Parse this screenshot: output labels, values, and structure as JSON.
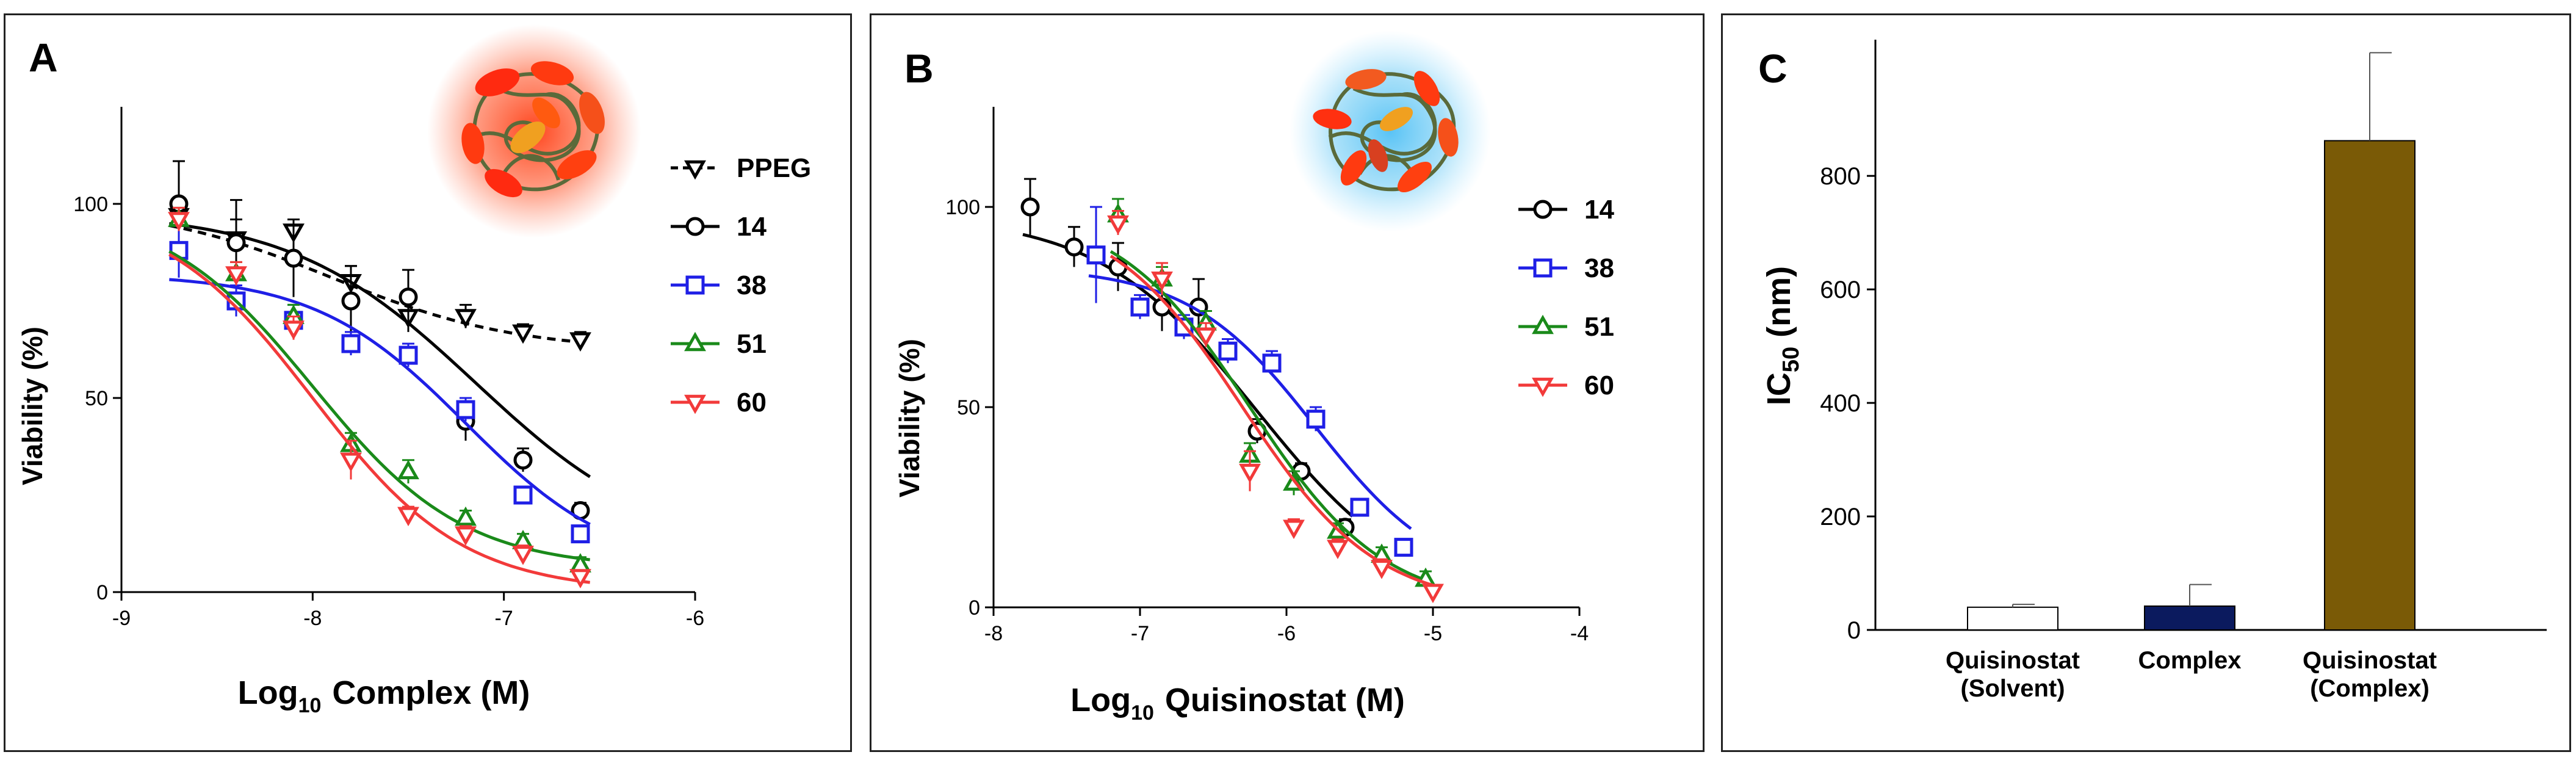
{
  "colors": {
    "PPEG": "#000000",
    "14": "#000000",
    "38": "#1f1fe6",
    "51": "#1a8a1a",
    "60": "#f23a3a",
    "bar_solvent": "#ffffff",
    "bar_complex": "#0b1a5e",
    "bar_quisinostat_complex": "#7a5a06",
    "nanoparticle_glow_A": "#ff4020",
    "nanoparticle_glow_B": "#4ab8f0"
  },
  "chart_data": [
    {
      "panel": "A",
      "type": "scatter",
      "title": "",
      "xlabel_main": "Log",
      "xlabel_sub": "10",
      "xlabel_rest": "Complex (M)",
      "ylabel": "Viability (%)",
      "xlim": [
        -9,
        -6
      ],
      "ylim": [
        0,
        125
      ],
      "xticks": [
        "-9",
        "-8",
        "-7",
        "-6"
      ],
      "xtick_values": [
        -9,
        -8,
        -7,
        -6
      ],
      "yticks": [
        "0",
        "50",
        "100"
      ],
      "ytick_values": [
        0,
        50,
        100
      ],
      "series": [
        {
          "name": "PPEG",
          "key": "PPEG",
          "marker": "triangle-down",
          "dashed": true,
          "x": [
            -8.7,
            -8.4,
            -8.1,
            -7.8,
            -7.5,
            -7.2,
            -6.9,
            -6.6
          ],
          "y": [
            97,
            91,
            93,
            80,
            71,
            71,
            67,
            65
          ],
          "err": [
            4,
            5,
            3,
            4,
            4,
            3,
            2,
            2
          ],
          "fit": {
            "bottom": 62,
            "top": 100,
            "logec50": -7.9,
            "hill": 0.9
          }
        },
        {
          "name": "14",
          "key": "14",
          "marker": "circle",
          "dashed": false,
          "x": [
            -8.7,
            -8.4,
            -8.1,
            -7.8,
            -7.5,
            -7.2,
            -6.9,
            -6.6
          ],
          "y": [
            100,
            90,
            86,
            75,
            76,
            44,
            34,
            21
          ],
          "err": [
            11,
            11,
            10,
            9,
            7,
            5,
            3,
            2
          ],
          "fit": {
            "bottom": 10,
            "top": 98,
            "logec50": -7.15,
            "hill": 0.9
          }
        },
        {
          "name": "38",
          "key": "38",
          "marker": "square",
          "dashed": false,
          "x": [
            -8.7,
            -8.4,
            -8.1,
            -7.8,
            -7.5,
            -7.2,
            -6.9,
            -6.6
          ],
          "y": [
            88,
            75,
            70,
            64,
            61,
            47,
            25,
            15
          ],
          "err": [
            7,
            4,
            4,
            3,
            3,
            3,
            2,
            2
          ],
          "fit": {
            "bottom": 5,
            "top": 82,
            "logec50": -7.2,
            "hill": 1.1
          }
        },
        {
          "name": "51",
          "key": "51",
          "marker": "triangle-up",
          "dashed": false,
          "x": [
            -8.7,
            -8.4,
            -8.1,
            -7.8,
            -7.5,
            -7.2,
            -6.9,
            -6.6
          ],
          "y": [
            96,
            82,
            71,
            38,
            31,
            19,
            13,
            7
          ],
          "err": [
            3,
            3,
            3,
            3,
            3,
            2,
            2,
            2
          ],
          "fit": {
            "bottom": 6,
            "top": 100,
            "logec50": -8.0,
            "hill": 1.1
          }
        },
        {
          "name": "60",
          "key": "60",
          "marker": "triangle-down",
          "dashed": false,
          "x": [
            -8.7,
            -8.4,
            -8.1,
            -7.8,
            -7.5,
            -7.2,
            -6.9,
            -6.6
          ],
          "y": [
            96,
            82,
            68,
            34,
            20,
            15,
            10,
            4
          ],
          "err": [
            3,
            3,
            3,
            5,
            2,
            2,
            2,
            1
          ],
          "fit": {
            "bottom": 0,
            "top": 100,
            "logec50": -8.0,
            "hill": 1.1
          }
        }
      ]
    },
    {
      "panel": "B",
      "type": "scatter",
      "title": "",
      "xlabel_main": "Log",
      "xlabel_sub": "10",
      "xlabel_rest": "Quisinostat (M)",
      "ylabel": "Viability (%)",
      "xlim": [
        -8,
        -4
      ],
      "ylim": [
        0,
        125
      ],
      "xticks": [
        "-8",
        "-7",
        "-6",
        "-5",
        "-4"
      ],
      "xtick_values": [
        -8,
        -7,
        -6,
        -5,
        -4
      ],
      "yticks": [
        "0",
        "50",
        "100"
      ],
      "ytick_values": [
        0,
        50,
        100
      ],
      "series": [
        {
          "name": "14",
          "key": "14",
          "marker": "circle",
          "dashed": false,
          "x": [
            -7.75,
            -7.45,
            -7.15,
            -6.85,
            -6.6,
            -6.2,
            -5.9,
            -5.6
          ],
          "y": [
            100,
            90,
            85,
            75,
            75,
            44,
            34,
            20
          ],
          "err": [
            7,
            5,
            6,
            6,
            7,
            3,
            2,
            2
          ],
          "fit": {
            "bottom": 0,
            "top": 98,
            "logec50": -6.2,
            "hill": 0.8
          }
        },
        {
          "name": "38",
          "key": "38",
          "marker": "square",
          "dashed": false,
          "x": [
            -7.3,
            -7.0,
            -6.7,
            -6.4,
            -6.1,
            -5.8,
            -5.5,
            -5.2
          ],
          "y": [
            88,
            75,
            70,
            64,
            61,
            47,
            25,
            15
          ],
          "err": [
            12,
            3,
            3,
            3,
            3,
            3,
            2,
            2
          ],
          "fit": {
            "bottom": 5,
            "top": 85,
            "logec50": -5.8,
            "hill": 1.0
          }
        },
        {
          "name": "51",
          "key": "51",
          "marker": "triangle-up",
          "dashed": false,
          "x": [
            -7.15,
            -6.85,
            -6.55,
            -6.25,
            -5.95,
            -5.65,
            -5.35,
            -5.05
          ],
          "y": [
            98,
            82,
            71,
            38,
            31,
            19,
            13,
            7
          ],
          "err": [
            4,
            3,
            3,
            3,
            3,
            2,
            2,
            2
          ],
          "fit": {
            "bottom": 0,
            "top": 100,
            "logec50": -6.25,
            "hill": 0.95
          }
        },
        {
          "name": "60",
          "key": "60",
          "marker": "triangle-down",
          "dashed": false,
          "x": [
            -7.15,
            -6.85,
            -6.55,
            -6.25,
            -5.95,
            -5.65,
            -5.35,
            -5.0
          ],
          "y": [
            96,
            82,
            68,
            34,
            20,
            15,
            10,
            4
          ],
          "err": [
            3,
            4,
            3,
            5,
            2,
            2,
            2,
            1
          ],
          "fit": {
            "bottom": 0,
            "top": 100,
            "logec50": -6.3,
            "hill": 0.95
          }
        }
      ]
    },
    {
      "panel": "C",
      "type": "bar",
      "title": "",
      "ylabel_main": "IC",
      "ylabel_sub": "50",
      "ylabel_rest": " (nm)",
      "ylim": [
        0,
        1040
      ],
      "yticks": [
        "0",
        "200",
        "400",
        "600",
        "800"
      ],
      "ytick_values": [
        0,
        200,
        400,
        600,
        800
      ],
      "categories": [
        [
          "Quisinostat",
          "(Solvent)"
        ],
        [
          "Complex"
        ],
        [
          "Quisinostat",
          "(Complex)"
        ]
      ],
      "values": [
        40,
        42,
        862
      ],
      "errors": [
        5,
        38,
        155
      ],
      "bar_color_keys": [
        "bar_solvent",
        "bar_complex",
        "bar_quisinostat_complex"
      ]
    }
  ],
  "panels": {
    "A": {
      "letter": "A",
      "legend": [
        "PPEG",
        "14",
        "38",
        "51",
        "60"
      ]
    },
    "B": {
      "letter": "B",
      "legend": [
        "14",
        "38",
        "51",
        "60"
      ]
    },
    "C": {
      "letter": "C"
    }
  }
}
